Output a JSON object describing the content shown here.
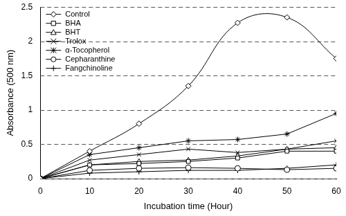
{
  "chart_data": {
    "type": "line",
    "x_label": "Incubation time (Hour)",
    "y_label": "Absorbance (500 nm)",
    "x": [
      0,
      10,
      20,
      30,
      40,
      50,
      60
    ],
    "xlim": [
      0,
      60
    ],
    "xticks": [
      0,
      10,
      20,
      30,
      40,
      50,
      60
    ],
    "ylim": [
      0,
      2.5
    ],
    "yticks": [
      0,
      0.5,
      1,
      1.5,
      2,
      2.5
    ],
    "grid": true,
    "legend": "upper left",
    "series": [
      {
        "name": "Control",
        "color": "#000000",
        "marker": "diamond",
        "values": [
          0,
          0.4,
          0.8,
          1.35,
          2.27,
          2.35,
          1.75
        ]
      },
      {
        "name": "BHA",
        "color": "#000000",
        "marker": "square",
        "values": [
          0,
          0.2,
          0.22,
          0.25,
          0.3,
          0.4,
          0.4
        ]
      },
      {
        "name": "BHT",
        "color": "#000000",
        "marker": "triangle",
        "values": [
          0,
          0.2,
          0.25,
          0.27,
          0.33,
          0.43,
          0.45
        ]
      },
      {
        "name": "Trolox",
        "color": "#000000",
        "marker": "x",
        "values": [
          0,
          0.27,
          0.35,
          0.43,
          0.38,
          0.43,
          0.55
        ]
      },
      {
        "name": "α-Tocopherol",
        "color": "#000000",
        "marker": "star",
        "values": [
          0,
          0.35,
          0.45,
          0.55,
          0.57,
          0.65,
          0.95
        ]
      },
      {
        "name": "Cepharanthine",
        "color": "#000000",
        "marker": "circle",
        "values": [
          0,
          0.12,
          0.15,
          0.16,
          0.15,
          0.13,
          0.15
        ]
      },
      {
        "name": "Fangchinoline",
        "color": "#000000",
        "marker": "plus",
        "values": [
          0,
          0.08,
          0.1,
          0.12,
          0.12,
          0.15,
          0.2
        ]
      }
    ]
  }
}
